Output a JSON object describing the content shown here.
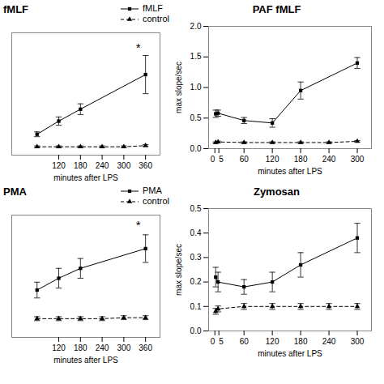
{
  "chart_data": [
    {
      "type": "line",
      "title": "fMLF",
      "xlabel": "minutes after LPS",
      "xlim": [
        -10,
        400
      ],
      "ylim": [
        -0.05,
        2.0
      ],
      "xticks": [
        120,
        180,
        240,
        300,
        360
      ],
      "tick_labels": "x",
      "legend": "upper right",
      "series": [
        {
          "name": "fMLF",
          "x": [
            60,
            120,
            180,
            360
          ],
          "values": [
            0.3,
            0.52,
            0.72,
            1.3
          ],
          "errors": [
            0.04,
            0.07,
            0.09,
            0.32
          ],
          "color": "black",
          "marker": "square",
          "line_style": "solid"
        },
        {
          "name": "control",
          "x": [
            60,
            120,
            180,
            240,
            300,
            360
          ],
          "values": [
            0.09,
            0.09,
            0.09,
            0.09,
            0.09,
            0.11
          ],
          "errors": [
            0.015,
            0.015,
            0.015,
            0.015,
            0.015,
            0.015
          ],
          "color": "black",
          "marker": "triangle",
          "line_style": "dashed"
        }
      ],
      "annotations": [
        {
          "text": "*",
          "x": 340,
          "y": 1.68
        }
      ]
    },
    {
      "type": "line",
      "title": "PAF fMLF",
      "xlabel": "minutes after LPS",
      "ylabel": "max slope/sec",
      "xlim": [
        -15,
        330
      ],
      "ylim": [
        0.0,
        2.0
      ],
      "xticks": [
        0,
        5,
        60,
        120,
        180,
        240,
        300
      ],
      "yticks": [
        {
          "value": 0.0,
          "label": "0.0"
        },
        0.5,
        {
          "value": 1.0,
          "label": "1.0"
        },
        1.5,
        {
          "value": 2.0,
          "label": "2.0"
        }
      ],
      "series": [
        {
          "x": [
            0,
            5,
            60,
            120,
            180,
            300
          ],
          "values": [
            0.57,
            0.58,
            0.46,
            0.42,
            0.95,
            1.4
          ],
          "errors": [
            0.06,
            0.05,
            0.05,
            0.07,
            0.14,
            0.09
          ],
          "color": "black",
          "marker": "square",
          "line_style": "solid"
        },
        {
          "x": [
            0,
            5,
            60,
            120,
            180,
            240,
            300
          ],
          "values": [
            0.1,
            0.11,
            0.1,
            0.1,
            0.1,
            0.1,
            0.12
          ],
          "errors": [
            0.012,
            0.012,
            0.012,
            0.012,
            0.012,
            0.012,
            0.012
          ],
          "color": "black",
          "marker": "triangle",
          "line_style": "dashed"
        }
      ]
    },
    {
      "type": "line",
      "title": "PMA",
      "xlabel": "minutes after LPS",
      "xlim": [
        -10,
        400
      ],
      "ylim": [
        -0.02,
        0.6
      ],
      "xticks": [
        120,
        180,
        240,
        300,
        360
      ],
      "tick_labels": "x",
      "legend": "upper right",
      "series": [
        {
          "name": "PMA",
          "x": [
            60,
            120,
            180,
            360
          ],
          "values": [
            0.22,
            0.28,
            0.33,
            0.43
          ],
          "errors": [
            0.04,
            0.05,
            0.05,
            0.07
          ],
          "color": "black",
          "marker": "square",
          "line_style": "solid"
        },
        {
          "name": "control",
          "x": [
            60,
            120,
            180,
            240,
            300,
            360
          ],
          "values": [
            0.075,
            0.075,
            0.075,
            0.075,
            0.08,
            0.08
          ],
          "errors": [
            0.01,
            0.01,
            0.01,
            0.01,
            0.01,
            0.01
          ],
          "color": "black",
          "marker": "triangle",
          "line_style": "dashed"
        }
      ],
      "annotations": [
        {
          "text": "*",
          "x": 340,
          "y": 0.53
        }
      ]
    },
    {
      "type": "line",
      "title": "Zymosan",
      "xlabel": "minutes after LPS",
      "ylabel": "max slope/sec",
      "xlim": [
        -15,
        330
      ],
      "ylim": [
        0.0,
        0.5
      ],
      "xticks": [
        0,
        5,
        60,
        120,
        180,
        240,
        300
      ],
      "yticks": [
        {
          "value": 0.0,
          "label": "0.0"
        },
        0.1,
        0.2,
        0.3,
        0.4,
        0.5
      ],
      "series": [
        {
          "x": [
            0,
            5,
            60,
            120,
            180,
            300
          ],
          "values": [
            0.22,
            0.2,
            0.18,
            0.2,
            0.27,
            0.38
          ],
          "errors": [
            0.04,
            0.04,
            0.03,
            0.04,
            0.05,
            0.06
          ],
          "color": "black",
          "marker": "square",
          "line_style": "solid"
        },
        {
          "x": [
            0,
            5,
            60,
            120,
            180,
            240,
            300
          ],
          "values": [
            0.08,
            0.09,
            0.1,
            0.1,
            0.1,
            0.1,
            0.1
          ],
          "errors": [
            0.012,
            0.012,
            0.012,
            0.012,
            0.012,
            0.012,
            0.012
          ],
          "color": "black",
          "marker": "triangle",
          "line_style": "dashed"
        }
      ]
    }
  ]
}
